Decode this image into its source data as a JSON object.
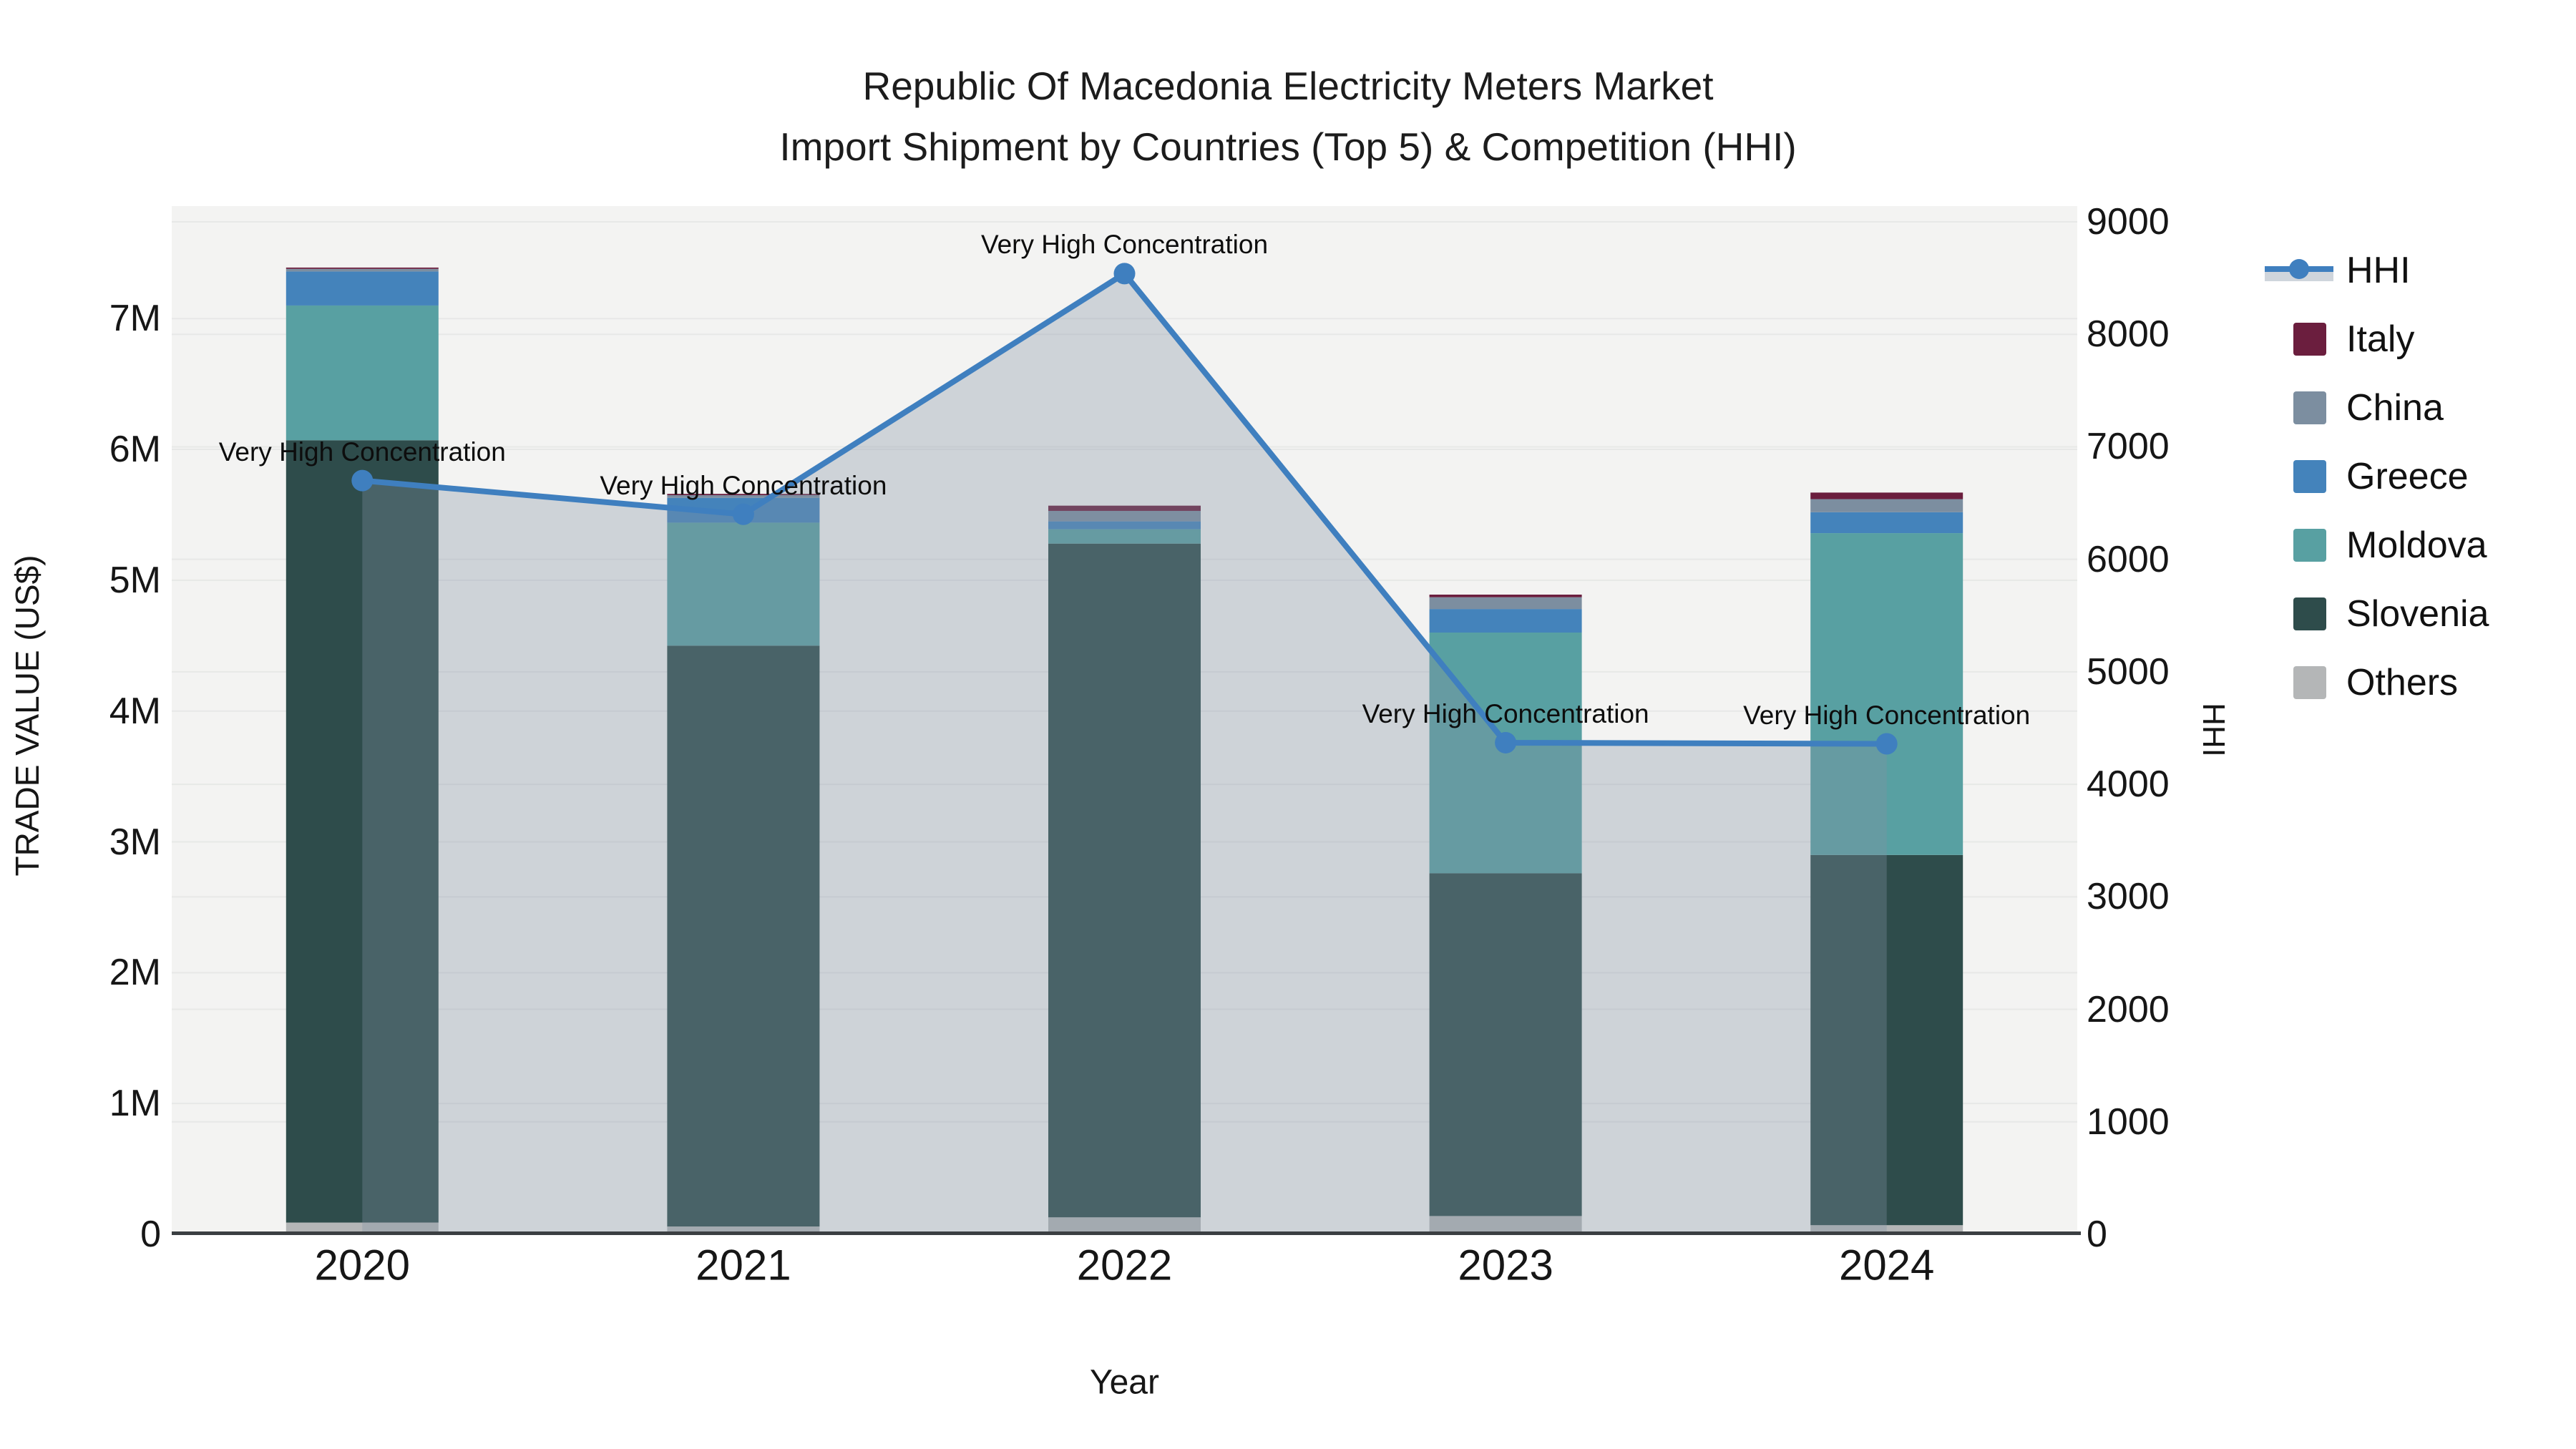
{
  "title": {
    "line1": "Republic Of Macedonia Electricity Meters Market",
    "line2": "Import Shipment by Countries (Top 5) & Competition (HHI)"
  },
  "axes": {
    "left": {
      "title": "TRADE VALUE (US$)",
      "tick_labels": [
        "0",
        "1M",
        "2M",
        "3M",
        "4M",
        "5M",
        "6M",
        "7M"
      ],
      "tick_values": [
        0,
        1000000,
        2000000,
        3000000,
        4000000,
        5000000,
        6000000,
        7000000
      ]
    },
    "right": {
      "title": "HHI",
      "tick_labels": [
        "0",
        "1000",
        "2000",
        "3000",
        "4000",
        "5000",
        "6000",
        "7000",
        "8000",
        "9000"
      ],
      "tick_values": [
        0,
        1000,
        2000,
        3000,
        4000,
        5000,
        6000,
        7000,
        8000,
        9000
      ]
    },
    "x": {
      "title": "Year"
    }
  },
  "legend": {
    "items": [
      {
        "label": "HHI",
        "swatch": "line"
      },
      {
        "label": "Italy",
        "swatch": "#6b1e3e"
      },
      {
        "label": "China",
        "swatch": "#7c8ea0"
      },
      {
        "label": "Greece",
        "swatch": "#4483bb"
      },
      {
        "label": "Moldova",
        "swatch": "#58a0a2"
      },
      {
        "label": "Slovenia",
        "swatch": "#2e4c4b"
      },
      {
        "label": "Others",
        "swatch": "#b4b6b7"
      }
    ]
  },
  "colors": {
    "hhi_line": "#3f7fbf",
    "hhi_area": "rgba(130,145,165,0.33)",
    "plot_bg": "#f3f3f2",
    "gridline": "#e7e8e7",
    "axis_line": "#3b3f42",
    "text": "#161616"
  },
  "chart_data": {
    "type": "bar",
    "subtype": "stacked-bars-with-line-dual-axis",
    "title": "Republic Of Macedonia Electricity Meters Market — Import Shipment by Countries (Top 5) & Competition (HHI)",
    "xlabel": "Year",
    "ylabel_left": "TRADE VALUE (US$)",
    "ylabel_right": "HHI",
    "categories": [
      "2020",
      "2021",
      "2022",
      "2023",
      "2024"
    ],
    "bar_series": [
      {
        "name": "Others",
        "color": "#b4b6b7",
        "values": [
          90000,
          60000,
          130000,
          140000,
          70000
        ]
      },
      {
        "name": "Slovenia",
        "color": "#2e4c4b",
        "values": [
          5980000,
          4440000,
          5150000,
          2620000,
          2830000
        ]
      },
      {
        "name": "Moldova",
        "color": "#58a0a2",
        "values": [
          1030000,
          940000,
          110000,
          1840000,
          2460000
        ]
      },
      {
        "name": "Greece",
        "color": "#4483bb",
        "values": [
          260000,
          190000,
          60000,
          180000,
          160000
        ]
      },
      {
        "name": "China",
        "color": "#7c8ea0",
        "values": [
          20000,
          20000,
          80000,
          90000,
          100000
        ]
      },
      {
        "name": "Italy",
        "color": "#6b1e3e",
        "values": [
          10000,
          10000,
          40000,
          20000,
          50000
        ]
      }
    ],
    "bar_totals": [
      7390000,
      5660000,
      5570000,
      4890000,
      5670000
    ],
    "line_series": {
      "name": "HHI",
      "axis": "right",
      "values": [
        6700,
        6400,
        8540,
        4370,
        4360
      ],
      "markers": true,
      "area_fill": true
    },
    "annotations": [
      {
        "year": "2020",
        "text": "Very High Concentration"
      },
      {
        "year": "2021",
        "text": "Very High Concentration"
      },
      {
        "year": "2022",
        "text": "Very High Concentration"
      },
      {
        "year": "2023",
        "text": "Very High Concentration"
      },
      {
        "year": "2024",
        "text": "Very High Concentration"
      }
    ],
    "ylim_left": [
      0,
      7860000
    ],
    "ylim_right": [
      0,
      9140
    ],
    "grid": true,
    "legend_position": "right"
  }
}
